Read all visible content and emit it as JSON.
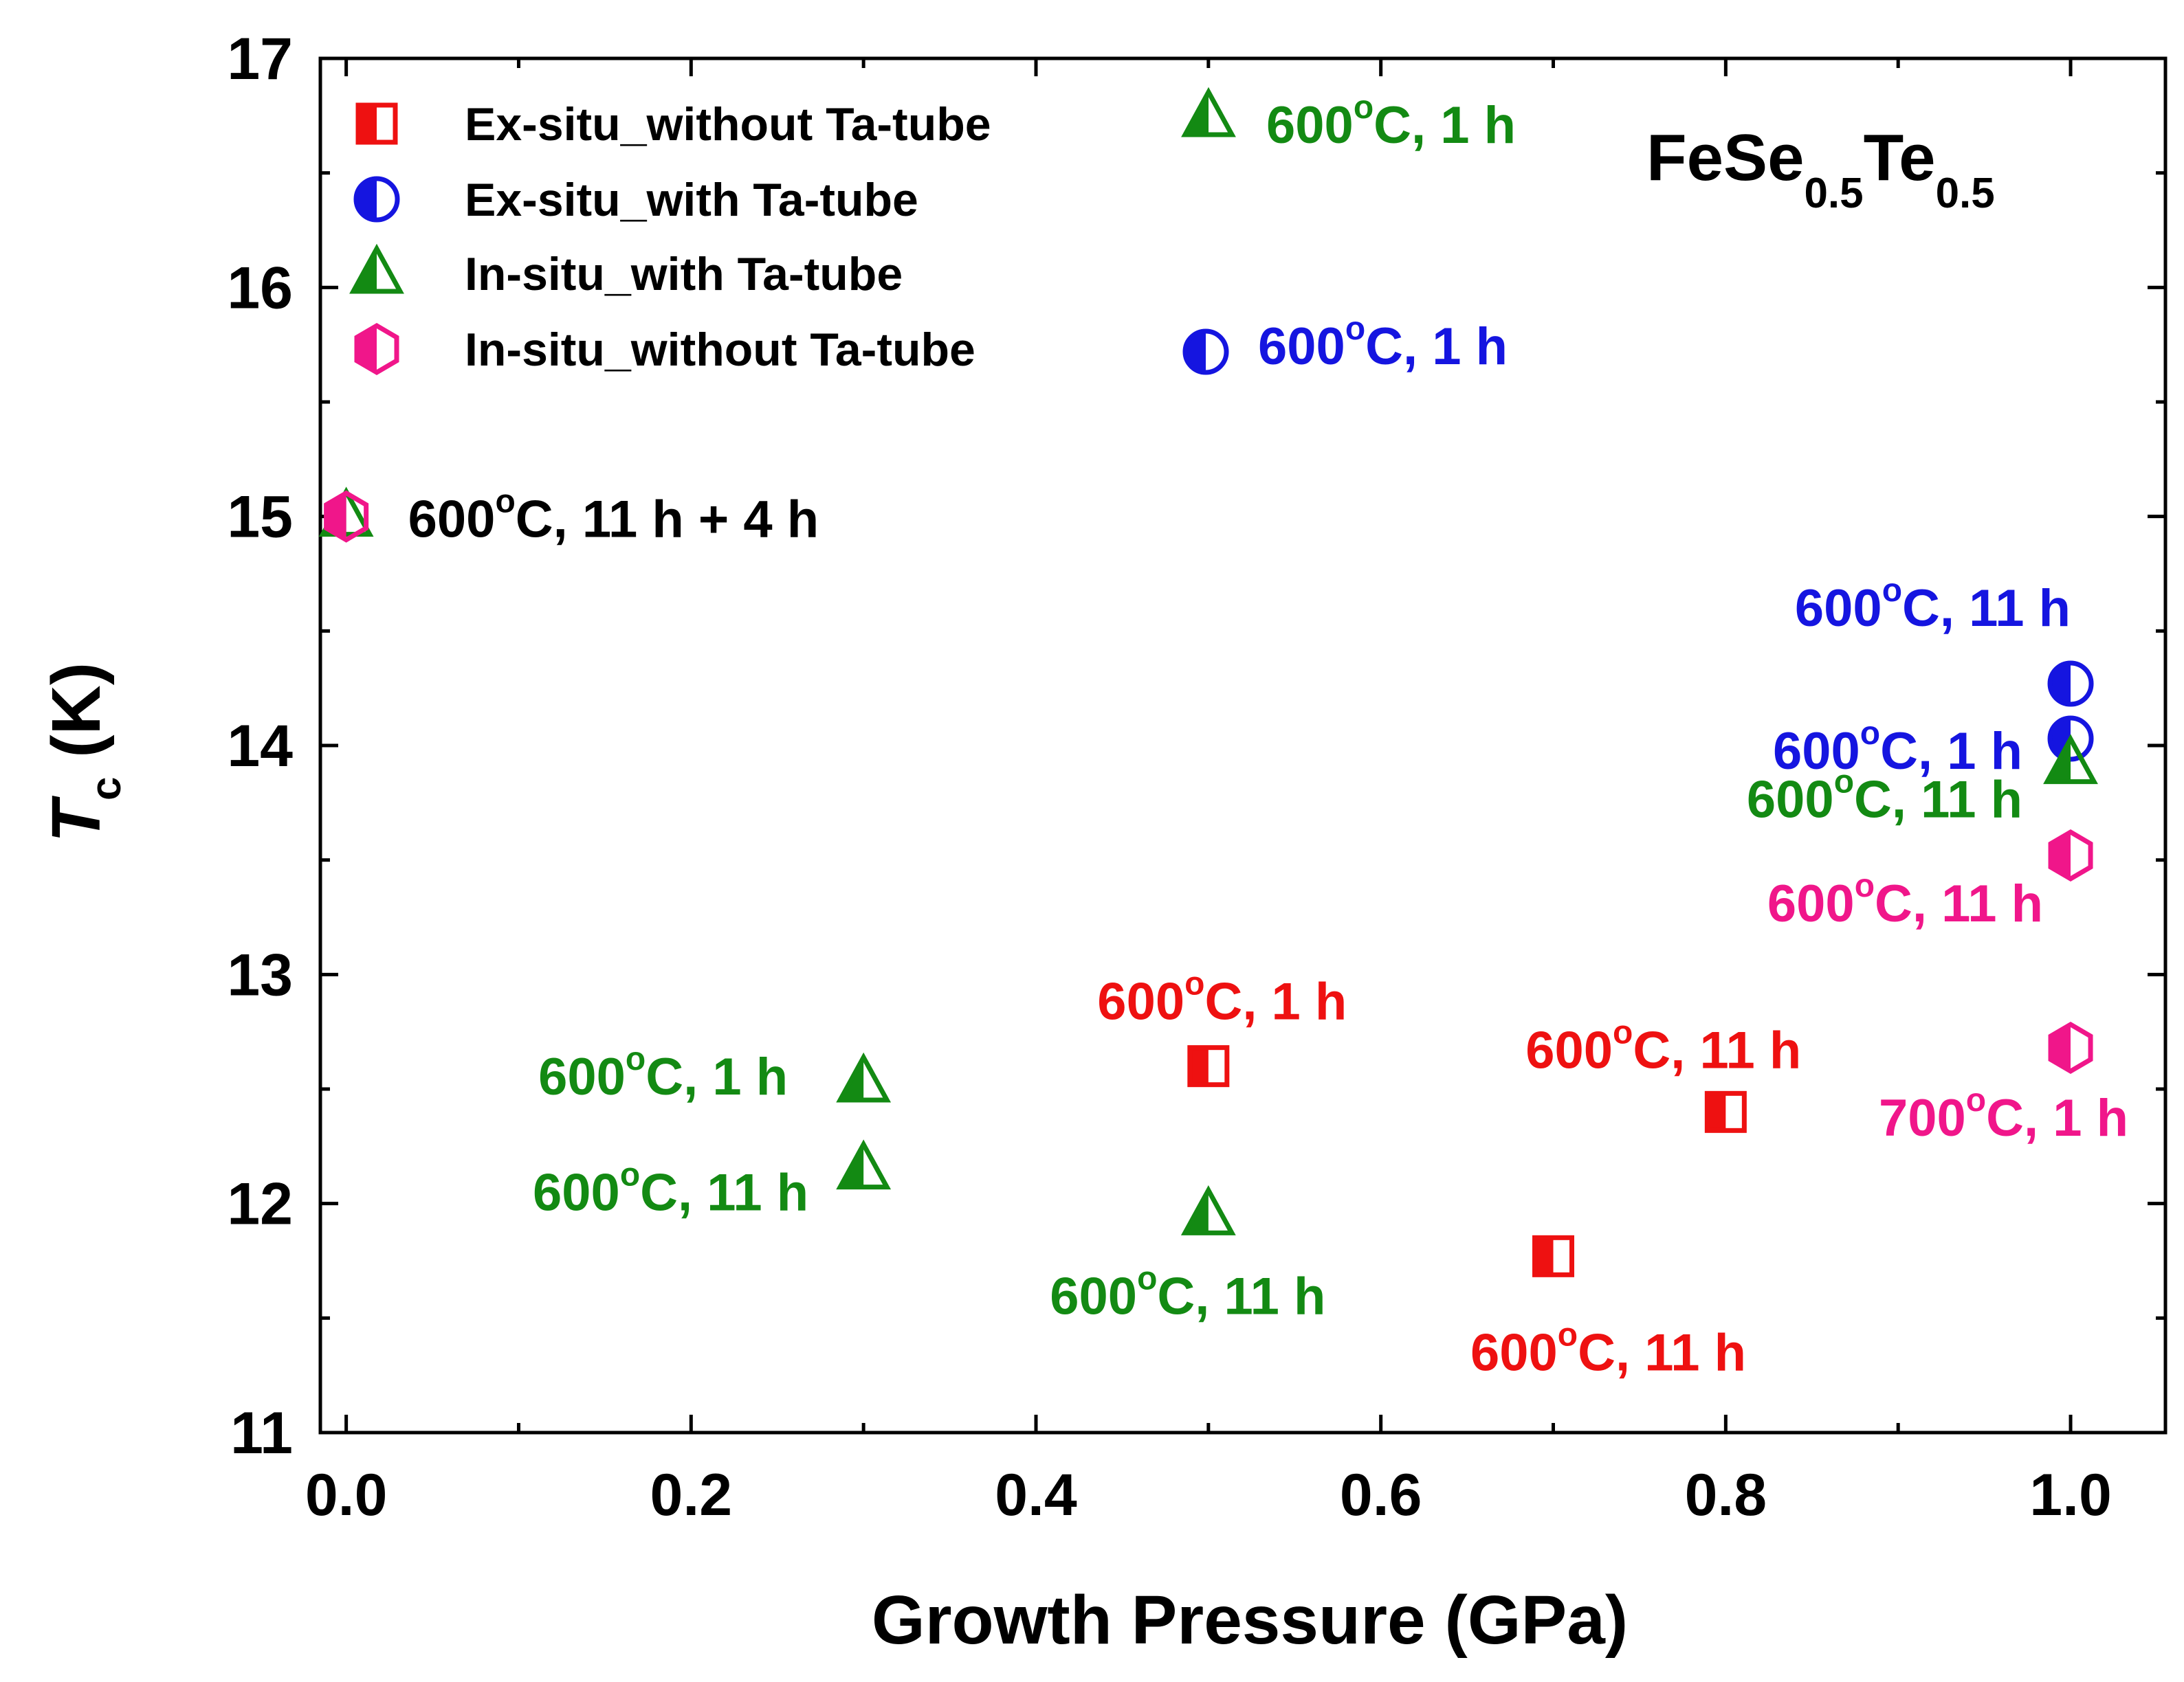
{
  "chart_data": {
    "type": "scatter",
    "title": "",
    "compound": {
      "base1": "FeSe",
      "sub1": "0.5",
      "base2": "Te",
      "sub2": "0.5"
    },
    "xlabel": "Growth Pressure (GPa)",
    "ylabel": {
      "italic": "T",
      "sub": "c",
      "rest": " (K)"
    },
    "xlim": [
      -0.015,
      1.055
    ],
    "ylim": [
      11,
      17
    ],
    "xticks": [
      "0.0",
      "0.2",
      "0.4",
      "0.6",
      "0.8",
      "1.0"
    ],
    "yticks": [
      "11",
      "12",
      "13",
      "14",
      "15",
      "16",
      "17"
    ],
    "grid": false,
    "legend_position": "top-left",
    "series": [
      {
        "name": "Ex-situ_without Ta-tube",
        "marker": "half-square",
        "color": "#ee1111",
        "points": [
          {
            "x": 0.5,
            "y": 12.6
          },
          {
            "x": 0.7,
            "y": 11.77
          },
          {
            "x": 0.8,
            "y": 12.4
          }
        ]
      },
      {
        "name": "Ex-situ_with Ta-tube",
        "marker": "half-circle",
        "color": "#1515e0",
        "points": [
          {
            "x": 1.0,
            "y": 14.27
          },
          {
            "x": 1.0,
            "y": 14.03
          }
        ]
      },
      {
        "name": "In-situ_with Ta-tube",
        "marker": "half-triangle",
        "color": "#138a13",
        "points": [
          {
            "x": 0.0,
            "y": 15.0
          },
          {
            "x": 0.3,
            "y": 12.53
          },
          {
            "x": 0.3,
            "y": 12.15
          },
          {
            "x": 0.5,
            "y": 11.95
          },
          {
            "x": 1.0,
            "y": 13.92
          }
        ]
      },
      {
        "name": "In-situ_without Ta-tube",
        "marker": "half-hexagon",
        "color": "#f0168a",
        "points": [
          {
            "x": 0.0,
            "y": 15.0
          },
          {
            "x": 1.0,
            "y": 13.52
          },
          {
            "x": 1.0,
            "y": 12.68
          }
        ]
      }
    ],
    "legend_notes": [
      {
        "series": 2,
        "temp": "600",
        "deg": "o",
        "rest": "C, 1 h"
      },
      {
        "series": 1,
        "temp": "600",
        "deg": "o",
        "rest": "C, 1 h"
      }
    ],
    "annotations": [
      {
        "x": 0.0,
        "y": 15.0,
        "color": "#000000",
        "temp": "600",
        "deg": "o",
        "rest": "C, 11 h + 4 h"
      },
      {
        "x": 1.0,
        "y": 14.27,
        "color": "#1515e0",
        "temp": "600",
        "deg": "o",
        "rest": "C, 11 h"
      },
      {
        "x": 1.0,
        "y": 14.03,
        "color": "#1515e0",
        "temp": "600",
        "deg": "o",
        "rest": "C, 1 h"
      },
      {
        "x": 1.0,
        "y": 13.92,
        "color": "#138a13",
        "temp": "600",
        "deg": "o",
        "rest": "C, 11 h"
      },
      {
        "x": 1.0,
        "y": 13.52,
        "color": "#f0168a",
        "temp": "600",
        "deg": "o",
        "rest": "C, 11 h"
      },
      {
        "x": 1.0,
        "y": 12.68,
        "color": "#f0168a",
        "temp": "700",
        "deg": "o",
        "rest": "C, 1 h"
      },
      {
        "x": 0.5,
        "y": 12.6,
        "color": "#ee1111",
        "temp": "600",
        "deg": "o",
        "rest": "C, 1 h"
      },
      {
        "x": 0.8,
        "y": 12.4,
        "color": "#ee1111",
        "temp": "600",
        "deg": "o",
        "rest": "C, 11 h"
      },
      {
        "x": 0.7,
        "y": 11.77,
        "color": "#ee1111",
        "temp": "600",
        "deg": "o",
        "rest": "C, 11 h"
      },
      {
        "x": 0.3,
        "y": 12.53,
        "color": "#138a13",
        "temp": "600",
        "deg": "o",
        "rest": "C, 1 h"
      },
      {
        "x": 0.3,
        "y": 12.15,
        "color": "#138a13",
        "temp": "600",
        "deg": "o",
        "rest": "C, 11 h"
      },
      {
        "x": 0.5,
        "y": 11.95,
        "color": "#138a13",
        "temp": "600",
        "deg": "o",
        "rest": "C, 11 h"
      }
    ]
  }
}
